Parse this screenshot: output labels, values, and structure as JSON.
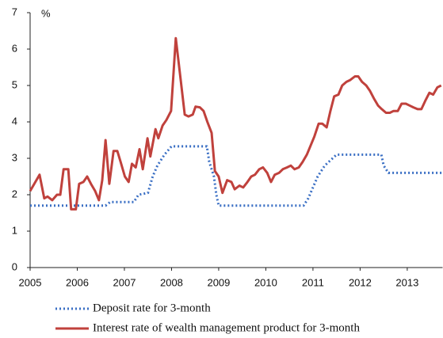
{
  "chart_data": {
    "type": "line",
    "y_label": "%",
    "xlim": [
      2005,
      2013.75
    ],
    "ylim": [
      0,
      7
    ],
    "xticks": [
      2005,
      2006,
      2007,
      2008,
      2009,
      2010,
      2011,
      2012,
      2013
    ],
    "yticks": [
      0,
      1,
      2,
      3,
      4,
      5,
      6,
      7
    ],
    "series": [
      {
        "name": "Deposit rate for 3-month",
        "color": "#3a6fc4",
        "style": "dotted",
        "x": [
          2005.0,
          2006.6,
          2006.7,
          2007.2,
          2007.3,
          2007.5,
          2007.6,
          2007.7,
          2007.85,
          2008.0,
          2008.75,
          2008.8,
          2008.9,
          2008.95,
          2009.0,
          2010.8,
          2010.9,
          2011.0,
          2011.1,
          2011.25,
          2011.5,
          2012.45,
          2012.5,
          2012.6,
          2013.75
        ],
        "values": [
          1.7,
          1.7,
          1.8,
          1.8,
          2.0,
          2.05,
          2.5,
          2.8,
          3.1,
          3.33,
          3.33,
          2.9,
          2.5,
          2.0,
          1.7,
          1.7,
          1.9,
          2.2,
          2.5,
          2.8,
          3.1,
          3.1,
          2.8,
          2.6,
          2.6
        ]
      },
      {
        "name": "Interest rate of wealth management product for 3-month",
        "color": "#c0413c",
        "style": "solid",
        "x": [
          2005.0,
          2005.2,
          2005.3,
          2005.37,
          2005.47,
          2005.57,
          2005.64,
          2005.71,
          2005.81,
          2005.87,
          2005.97,
          2006.04,
          2006.13,
          2006.21,
          2006.29,
          2006.38,
          2006.46,
          2006.53,
          2006.6,
          2006.68,
          2006.77,
          2006.85,
          2006.92,
          2007.01,
          2007.09,
          2007.16,
          2007.24,
          2007.32,
          2007.39,
          2007.49,
          2007.55,
          2007.66,
          2007.72,
          2007.81,
          2007.89,
          2007.99,
          2008.09,
          2008.19,
          2008.28,
          2008.36,
          2008.45,
          2008.51,
          2008.6,
          2008.68,
          2008.76,
          2008.85,
          2008.92,
          2009.0,
          2009.08,
          2009.18,
          2009.27,
          2009.34,
          2009.44,
          2009.52,
          2009.61,
          2009.69,
          2009.77,
          2009.86,
          2009.94,
          2010.03,
          2010.11,
          2010.19,
          2010.28,
          2010.36,
          2010.45,
          2010.53,
          2010.61,
          2010.7,
          2010.78,
          2010.87,
          2010.95,
          2011.03,
          2011.12,
          2011.2,
          2011.29,
          2011.37,
          2011.45,
          2011.54,
          2011.62,
          2011.71,
          2011.79,
          2011.89,
          2011.96,
          2012.04,
          2012.13,
          2012.21,
          2012.29,
          2012.38,
          2012.46,
          2012.55,
          2012.63,
          2012.71,
          2012.8,
          2012.88,
          2012.97,
          2013.05,
          2013.13,
          2013.22,
          2013.3,
          2013.39,
          2013.47,
          2013.55,
          2013.64,
          2013.72
        ],
        "values": [
          2.1,
          2.55,
          1.9,
          1.95,
          1.85,
          2.0,
          2.0,
          2.7,
          2.7,
          1.6,
          1.6,
          2.3,
          2.35,
          2.5,
          2.3,
          2.1,
          1.85,
          2.4,
          3.5,
          2.3,
          3.2,
          3.2,
          2.9,
          2.5,
          2.35,
          2.85,
          2.75,
          3.25,
          2.7,
          3.55,
          3.05,
          3.8,
          3.55,
          3.9,
          4.05,
          4.3,
          6.3,
          5.2,
          4.2,
          4.15,
          4.2,
          4.42,
          4.4,
          4.3,
          4.0,
          3.7,
          2.65,
          2.5,
          2.05,
          2.4,
          2.35,
          2.15,
          2.25,
          2.2,
          2.35,
          2.5,
          2.55,
          2.7,
          2.75,
          2.6,
          2.35,
          2.55,
          2.6,
          2.7,
          2.75,
          2.8,
          2.7,
          2.75,
          2.9,
          3.1,
          3.35,
          3.6,
          3.95,
          3.95,
          3.85,
          4.3,
          4.7,
          4.75,
          5.0,
          5.1,
          5.15,
          5.25,
          5.25,
          5.1,
          5.0,
          4.85,
          4.65,
          4.45,
          4.35,
          4.25,
          4.25,
          4.3,
          4.3,
          4.5,
          4.5,
          4.45,
          4.4,
          4.35,
          4.35,
          4.6,
          4.8,
          4.75,
          4.95,
          5.0
        ]
      }
    ]
  }
}
